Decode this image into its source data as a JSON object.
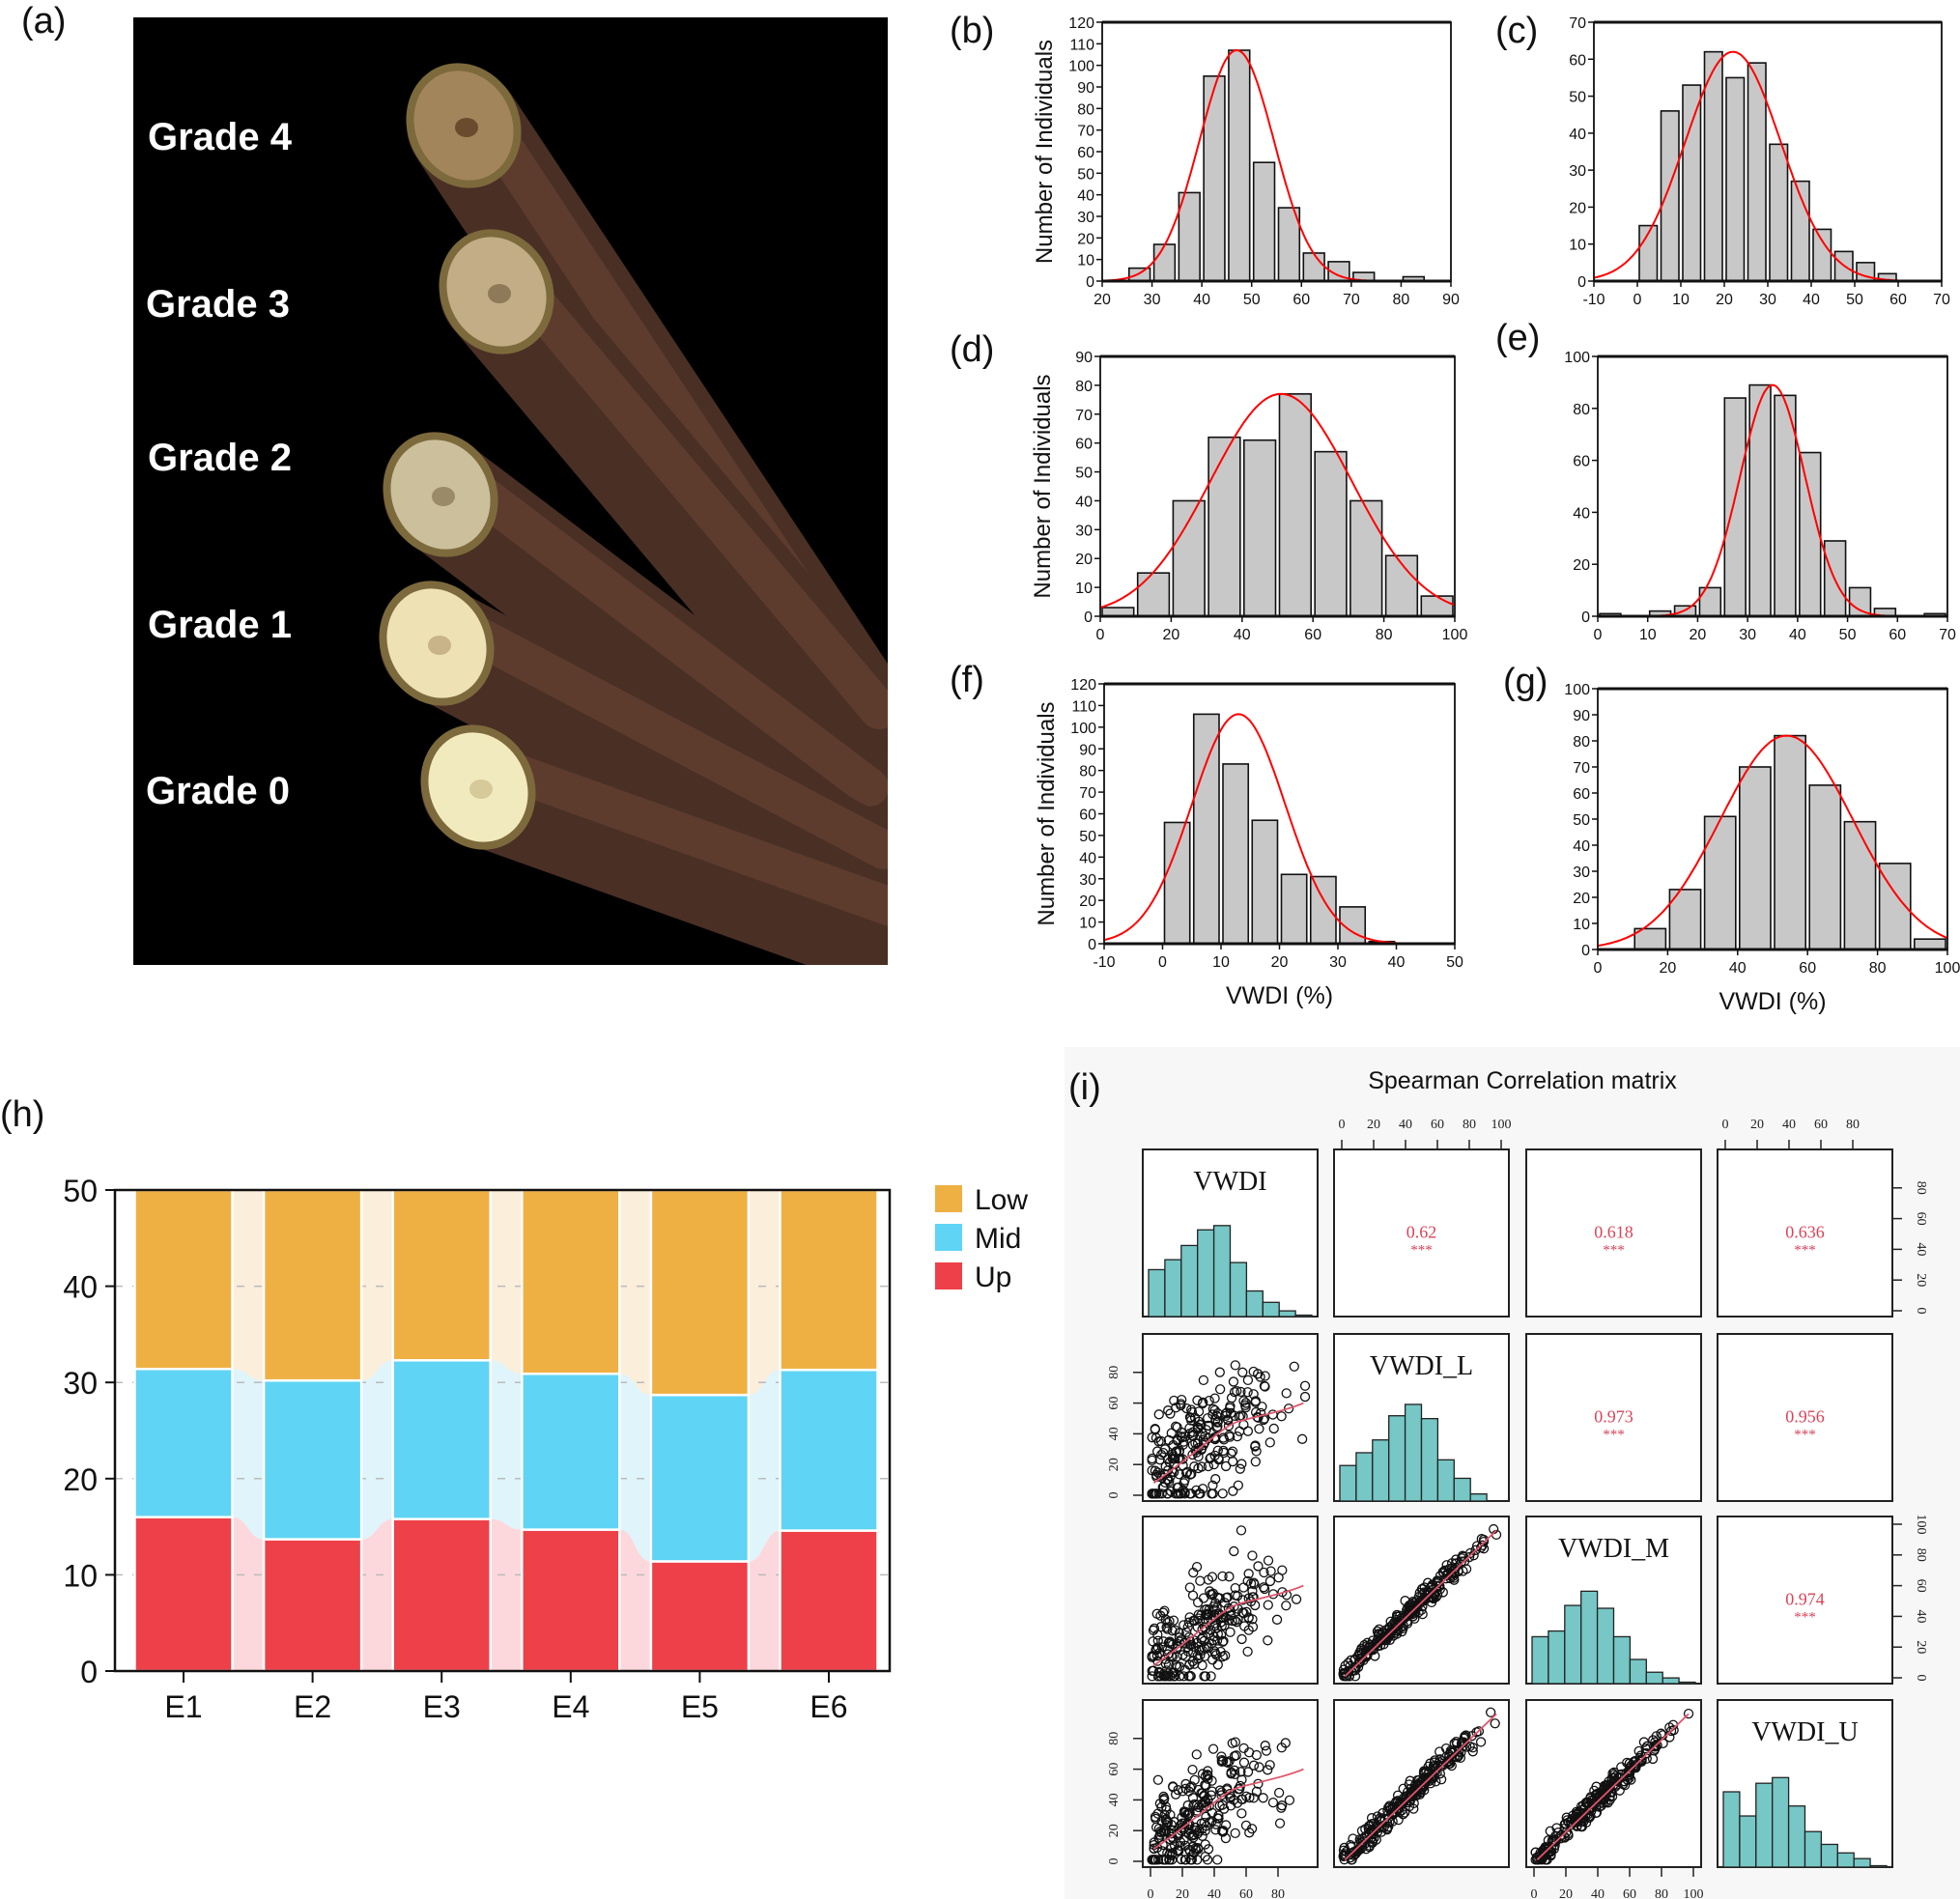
{
  "panels": {
    "a": "(a)",
    "b": "(b)",
    "c": "(c)",
    "d": "(d)",
    "e": "(e)",
    "f": "(f)",
    "g": "(g)",
    "h": "(h)",
    "i": "(i)"
  },
  "photo": {
    "grades": [
      "Grade 4",
      "Grade 3",
      "Grade 2",
      "Grade 1",
      "Grade 0"
    ]
  },
  "chart_data": [
    {
      "panel": "b",
      "type": "bar",
      "xlabel": "",
      "ylabel": "Number of Individuals",
      "bin_start": 25,
      "bin_width": 5,
      "values": [
        6,
        17,
        41,
        95,
        107,
        55,
        34,
        13,
        9,
        4,
        0,
        2
      ],
      "fit": {
        "mean": 47,
        "sd": 7.5,
        "peak": 107,
        "range": [
          20,
          75
        ],
        "color": "#ff0000"
      },
      "xlim": [
        20,
        90
      ],
      "ylim": [
        0,
        120
      ],
      "xticks": [
        "20",
        "30",
        "40",
        "50",
        "60",
        "70",
        "80",
        "90"
      ],
      "yticks": [
        "0",
        "10",
        "20",
        "30",
        "40",
        "50",
        "60",
        "70",
        "80",
        "90",
        "100",
        "110",
        "120"
      ]
    },
    {
      "panel": "c",
      "type": "bar",
      "xlabel": "",
      "ylabel": "",
      "bin_start": 0,
      "bin_width": 5,
      "values": [
        15,
        46,
        53,
        62,
        55,
        59,
        37,
        27,
        14,
        8,
        5,
        2
      ],
      "fit": {
        "mean": 22,
        "sd": 11,
        "peak": 62,
        "range": [
          -10,
          60
        ],
        "color": "#ff0000"
      },
      "xlim": [
        -10,
        70
      ],
      "ylim": [
        0,
        70
      ],
      "xticks": [
        "-10",
        "0",
        "10",
        "20",
        "30",
        "40",
        "50",
        "60",
        "70"
      ],
      "yticks": [
        "0",
        "10",
        "20",
        "30",
        "40",
        "50",
        "60",
        "70"
      ]
    },
    {
      "panel": "d",
      "type": "bar",
      "xlabel": "",
      "ylabel": "Number of Individuals",
      "bin_start": 0,
      "bin_width": 10,
      "values": [
        3,
        15,
        40,
        62,
        61,
        77,
        57,
        40,
        21,
        7
      ],
      "fit": {
        "mean": 51,
        "sd": 20,
        "peak": 77,
        "range": [
          0,
          100
        ],
        "color": "#ff0000"
      },
      "xlim": [
        0,
        100
      ],
      "ylim": [
        0,
        90
      ],
      "xticks": [
        "0",
        "20",
        "40",
        "60",
        "80",
        "100"
      ],
      "yticks": [
        "0",
        "10",
        "20",
        "30",
        "40",
        "50",
        "60",
        "70",
        "80",
        "90"
      ]
    },
    {
      "panel": "e",
      "type": "bar",
      "xlabel": "",
      "ylabel": "",
      "bin_start": 0,
      "bin_width": 5,
      "values": [
        1,
        0,
        2,
        4,
        11,
        84,
        89,
        85,
        63,
        29,
        11,
        3,
        0,
        1
      ],
      "fit": {
        "mean": 35,
        "sd": 6.5,
        "peak": 89,
        "range": [
          10,
          61
        ],
        "color": "#ff0000"
      },
      "xlim": [
        0,
        70
      ],
      "ylim": [
        0,
        100
      ],
      "xticks": [
        "0",
        "10",
        "20",
        "30",
        "40",
        "50",
        "60",
        "70"
      ],
      "yticks": [
        "0",
        "20",
        "40",
        "60",
        "80",
        "100"
      ]
    },
    {
      "panel": "f",
      "type": "bar",
      "xlabel": "VWDI (%)",
      "ylabel": "Number of Individuals",
      "bin_start": 0,
      "bin_width": 5,
      "values": [
        56,
        106,
        83,
        57,
        32,
        31,
        17,
        1
      ],
      "fit": {
        "mean": 13,
        "sd": 8,
        "peak": 106,
        "range": [
          -10,
          40
        ],
        "color": "#ff0000"
      },
      "xlim": [
        -10,
        50
      ],
      "ylim": [
        0,
        120
      ],
      "xticks": [
        "-10",
        "0",
        "10",
        "20",
        "30",
        "40",
        "50"
      ],
      "yticks": [
        "0",
        "10",
        "20",
        "30",
        "40",
        "50",
        "60",
        "70",
        "80",
        "90",
        "100",
        "110",
        "120"
      ]
    },
    {
      "panel": "g",
      "type": "bar",
      "xlabel": "VWDI (%)",
      "ylabel": "",
      "bin_start": 10,
      "bin_width": 10,
      "values": [
        8,
        23,
        51,
        70,
        82,
        63,
        49,
        33,
        4
      ],
      "fit": {
        "mean": 54,
        "sd": 19,
        "peak": 82,
        "range": [
          0,
          100
        ],
        "color": "#ff0000"
      },
      "xlim": [
        0,
        100
      ],
      "ylim": [
        0,
        100
      ],
      "xticks": [
        "0",
        "20",
        "40",
        "60",
        "80",
        "100"
      ],
      "yticks": [
        "0",
        "10",
        "20",
        "30",
        "40",
        "50",
        "60",
        "70",
        "80",
        "90",
        "100"
      ]
    },
    {
      "panel": "h",
      "type": "bar",
      "stacked": true,
      "categories": [
        "E1",
        "E2",
        "E3",
        "E4",
        "E5",
        "E6"
      ],
      "series": [
        {
          "name": "Low",
          "values": [
            18.6,
            19.8,
            17.7,
            19.1,
            21.3,
            18.7
          ],
          "color": "#efb043",
          "band": "#fbeedb"
        },
        {
          "name": "Mid",
          "values": [
            15.4,
            16.5,
            16.5,
            16.2,
            17.3,
            16.7
          ],
          "color": "#5fd4f4",
          "band": "#dff4fb"
        },
        {
          "name": "Up",
          "values": [
            16.0,
            13.7,
            15.8,
            14.7,
            11.4,
            14.6
          ],
          "color": "#ee4049",
          "band": "#fcd8dc"
        }
      ],
      "ylim": [
        0,
        50
      ],
      "yticks": [
        "0",
        "10",
        "20",
        "30",
        "40",
        "50"
      ],
      "legend": "right"
    },
    {
      "panel": "i",
      "type": "scatter",
      "title": "Spearman Correlation matrix",
      "variables": [
        "VWDI",
        "VWDI_L",
        "VWDI_M",
        "VWDI_U"
      ],
      "correlations": [
        {
          "row": 0,
          "col": 1,
          "r": "0.62",
          "sig": "***"
        },
        {
          "row": 0,
          "col": 2,
          "r": "0.618",
          "sig": "***"
        },
        {
          "row": 0,
          "col": 3,
          "r": "0.636",
          "sig": "***"
        },
        {
          "row": 1,
          "col": 2,
          "r": "0.973",
          "sig": "***"
        },
        {
          "row": 1,
          "col": 3,
          "r": "0.956",
          "sig": "***"
        },
        {
          "row": 2,
          "col": 3,
          "r": "0.974",
          "sig": "***"
        }
      ],
      "histograms": [
        [
          33,
          40,
          50,
          61,
          64,
          38,
          18,
          10,
          4,
          1
        ],
        [
          25,
          34,
          43,
          60,
          68,
          58,
          29,
          16,
          5,
          0
        ],
        [
          33,
          37,
          55,
          65,
          53,
          33,
          17,
          8,
          4,
          1
        ],
        [
          53,
          36,
          59,
          63,
          43,
          25,
          16,
          10,
          6,
          1
        ]
      ],
      "text_color": "#d9445a",
      "hist_color": "#76c7c5",
      "axis_ticks": {
        "top_col2": [
          "0",
          "20",
          "40",
          "60",
          "80",
          "100"
        ],
        "top_col4": [
          "0",
          "20",
          "40",
          "60",
          "80"
        ],
        "right_row1": [
          "0",
          "20",
          "40",
          "60",
          "80"
        ],
        "right_row3": [
          "0",
          "20",
          "40",
          "60",
          "80",
          "100"
        ],
        "left_row2": [
          "0",
          "20",
          "40",
          "60",
          "80"
        ],
        "left_row4": [
          "0",
          "20",
          "40",
          "60",
          "80"
        ],
        "bottom_col1": [
          "0",
          "20",
          "40",
          "60",
          "80"
        ],
        "bottom_col3": [
          "0",
          "20",
          "40",
          "60",
          "80",
          "100"
        ]
      }
    }
  ]
}
